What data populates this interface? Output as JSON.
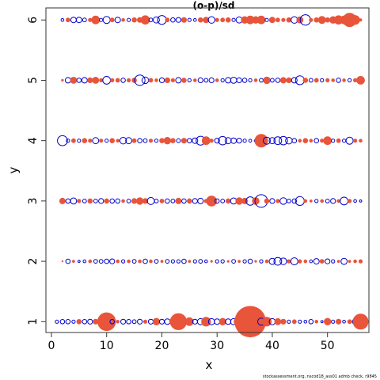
{
  "chart_data": {
    "type": "scatter",
    "title": "(o-p)/sd",
    "xlabel": "x",
    "ylabel": "y",
    "xlim": [
      -1,
      57.5
    ],
    "ylim": [
      0.82,
      6.2
    ],
    "xticks": [
      0,
      10,
      20,
      30,
      40,
      50
    ],
    "yticks": [
      1,
      2,
      3,
      4,
      5,
      6
    ],
    "grid": false,
    "legend": "none",
    "encoding": "bubble size = |residual|, filled red = positive, open blue = negative",
    "colors": {
      "positive": "#E8553A",
      "negative": "#0000CC",
      "frame": "#333333"
    },
    "points": [
      [
        1,
        1,
        -0.6
      ],
      [
        2,
        1,
        -0.8
      ],
      [
        3,
        1,
        -0.8
      ],
      [
        4,
        1,
        -0.6
      ],
      [
        5,
        1,
        0.8
      ],
      [
        6,
        1,
        -0.8
      ],
      [
        7,
        1,
        -0.9
      ],
      [
        8,
        1,
        0.9
      ],
      [
        9,
        1,
        -0.8
      ],
      [
        10,
        1,
        3.2
      ],
      [
        11,
        1,
        -0.8
      ],
      [
        12,
        1,
        0.5
      ],
      [
        13,
        1,
        -0.9
      ],
      [
        14,
        1,
        -0.8
      ],
      [
        15,
        1,
        -0.7
      ],
      [
        16,
        1,
        -0.9
      ],
      [
        17,
        1,
        0.6
      ],
      [
        18,
        1,
        -0.9
      ],
      [
        19,
        1,
        1.2
      ],
      [
        20,
        1,
        -0.9
      ],
      [
        21,
        1,
        -1.0
      ],
      [
        22,
        1,
        1.2
      ],
      [
        23,
        1,
        2.9
      ],
      [
        24,
        1,
        0.9
      ],
      [
        25,
        1,
        1.4
      ],
      [
        26,
        1,
        -0.9
      ],
      [
        27,
        1,
        -1.1
      ],
      [
        28,
        1,
        1.6
      ],
      [
        29,
        1,
        -1.1
      ],
      [
        30,
        1,
        -1.0
      ],
      [
        31,
        1,
        1.2
      ],
      [
        32,
        1,
        -1.0
      ],
      [
        33,
        1,
        -1.1
      ],
      [
        34,
        1,
        1.8
      ],
      [
        35,
        1,
        0.9
      ],
      [
        36,
        1,
        5.5
      ],
      [
        37,
        1,
        1.2
      ],
      [
        38,
        1,
        -1.3
      ],
      [
        39,
        1,
        1.6
      ],
      [
        40,
        1,
        -1.1
      ],
      [
        41,
        1,
        1.1
      ],
      [
        42,
        1,
        0.9
      ],
      [
        43,
        1,
        -0.6
      ],
      [
        44,
        1,
        0.7
      ],
      [
        45,
        1,
        -0.6
      ],
      [
        46,
        1,
        -0.5
      ],
      [
        47,
        1,
        -0.8
      ],
      [
        48,
        1,
        0.5
      ],
      [
        49,
        1,
        -0.4
      ],
      [
        50,
        1,
        1.2
      ],
      [
        51,
        1,
        -0.6
      ],
      [
        52,
        1,
        0.9
      ],
      [
        53,
        1,
        -0.5
      ],
      [
        54,
        1,
        0.7
      ],
      [
        55,
        1,
        -1.0
      ],
      [
        56,
        1,
        2.7
      ],
      [
        2,
        2,
        0.2
      ],
      [
        3,
        2,
        -0.8
      ],
      [
        4,
        2,
        0.4
      ],
      [
        5,
        2,
        -0.4
      ],
      [
        6,
        2,
        -0.5
      ],
      [
        7,
        2,
        0.5
      ],
      [
        8,
        2,
        -0.7
      ],
      [
        9,
        2,
        -0.7
      ],
      [
        10,
        2,
        -0.8
      ],
      [
        11,
        2,
        -0.9
      ],
      [
        12,
        2,
        0.5
      ],
      [
        13,
        2,
        -0.6
      ],
      [
        14,
        2,
        0.5
      ],
      [
        15,
        2,
        -0.7
      ],
      [
        16,
        2,
        0.5
      ],
      [
        17,
        2,
        -0.8
      ],
      [
        18,
        2,
        0.5
      ],
      [
        19,
        2,
        -0.7
      ],
      [
        20,
        2,
        0.4
      ],
      [
        21,
        2,
        -0.7
      ],
      [
        22,
        2,
        -0.6
      ],
      [
        23,
        2,
        -0.6
      ],
      [
        24,
        2,
        -0.8
      ],
      [
        25,
        2,
        0.4
      ],
      [
        26,
        2,
        -0.6
      ],
      [
        27,
        2,
        -0.7
      ],
      [
        28,
        2,
        -0.5
      ],
      [
        29,
        2,
        0.3
      ],
      [
        30,
        2,
        -0.6
      ],
      [
        31,
        2,
        -0.6
      ],
      [
        32,
        2,
        0.3
      ],
      [
        33,
        2,
        -0.7
      ],
      [
        34,
        2,
        0.4
      ],
      [
        35,
        2,
        -0.6
      ],
      [
        36,
        2,
        -0.8
      ],
      [
        37,
        2,
        0.3
      ],
      [
        38,
        2,
        -0.6
      ],
      [
        39,
        2,
        0.5
      ],
      [
        40,
        2,
        -1.1
      ],
      [
        41,
        2,
        -1.4
      ],
      [
        42,
        2,
        -1.2
      ],
      [
        43,
        2,
        0.6
      ],
      [
        44,
        2,
        -1.3
      ],
      [
        45,
        2,
        0.6
      ],
      [
        46,
        2,
        0.5
      ],
      [
        47,
        2,
        -0.5
      ],
      [
        48,
        2,
        -1.0
      ],
      [
        49,
        2,
        0.7
      ],
      [
        50,
        2,
        -0.9
      ],
      [
        51,
        2,
        -0.6
      ],
      [
        52,
        2,
        0.4
      ],
      [
        53,
        2,
        -1.1
      ],
      [
        54,
        2,
        0.4
      ],
      [
        55,
        2,
        0.5
      ],
      [
        56,
        2,
        0.6
      ],
      [
        2,
        3,
        1.0
      ],
      [
        3,
        3,
        -0.8
      ],
      [
        4,
        3,
        -1.1
      ],
      [
        5,
        3,
        0.6
      ],
      [
        6,
        3,
        -0.7
      ],
      [
        7,
        3,
        0.8
      ],
      [
        8,
        3,
        -0.7
      ],
      [
        9,
        3,
        -0.9
      ],
      [
        10,
        3,
        0.8
      ],
      [
        11,
        3,
        -0.8
      ],
      [
        12,
        3,
        -0.8
      ],
      [
        13,
        3,
        0.5
      ],
      [
        14,
        3,
        -0.7
      ],
      [
        15,
        3,
        0.9
      ],
      [
        16,
        3,
        1.2
      ],
      [
        17,
        3,
        0.9
      ],
      [
        18,
        3,
        -1.3
      ],
      [
        19,
        3,
        -0.7
      ],
      [
        20,
        3,
        0.7
      ],
      [
        21,
        3,
        -0.8
      ],
      [
        22,
        3,
        -0.7
      ],
      [
        23,
        3,
        1.0
      ],
      [
        24,
        3,
        -0.8
      ],
      [
        25,
        3,
        0.8
      ],
      [
        26,
        3,
        -0.9
      ],
      [
        27,
        3,
        -1.0
      ],
      [
        28,
        3,
        0.6
      ],
      [
        29,
        3,
        1.8
      ],
      [
        30,
        3,
        -0.8
      ],
      [
        31,
        3,
        -0.7
      ],
      [
        32,
        3,
        0.8
      ],
      [
        33,
        3,
        -1.1
      ],
      [
        34,
        3,
        1.2
      ],
      [
        35,
        3,
        1.0
      ],
      [
        36,
        3,
        -1.5
      ],
      [
        37,
        3,
        1.2
      ],
      [
        38,
        3,
        -2.3
      ],
      [
        39,
        3,
        0.8
      ],
      [
        40,
        3,
        -0.9
      ],
      [
        41,
        3,
        0.6
      ],
      [
        42,
        3,
        -1.2
      ],
      [
        43,
        3,
        -0.7
      ],
      [
        44,
        3,
        -0.8
      ],
      [
        45,
        3,
        -1.6
      ],
      [
        46,
        3,
        0.5
      ],
      [
        47,
        3,
        0.4
      ],
      [
        48,
        3,
        -0.6
      ],
      [
        49,
        3,
        0.5
      ],
      [
        50,
        3,
        -0.7
      ],
      [
        51,
        3,
        -0.9
      ],
      [
        52,
        3,
        0.5
      ],
      [
        53,
        3,
        -1.4
      ],
      [
        54,
        3,
        0.6
      ],
      [
        55,
        3,
        -0.5
      ],
      [
        56,
        3,
        -0.4
      ],
      [
        2,
        4,
        -1.8
      ],
      [
        3,
        4,
        -0.6
      ],
      [
        4,
        4,
        0.7
      ],
      [
        5,
        4,
        -0.6
      ],
      [
        6,
        4,
        0.8
      ],
      [
        7,
        4,
        0.6
      ],
      [
        8,
        4,
        -1.1
      ],
      [
        9,
        4,
        0.6
      ],
      [
        10,
        4,
        -0.6
      ],
      [
        11,
        4,
        0.8
      ],
      [
        12,
        4,
        0.5
      ],
      [
        13,
        4,
        -1.2
      ],
      [
        14,
        4,
        -1.1
      ],
      [
        15,
        4,
        0.7
      ],
      [
        16,
        4,
        -0.8
      ],
      [
        17,
        4,
        -0.7
      ],
      [
        18,
        4,
        0.6
      ],
      [
        19,
        4,
        -0.6
      ],
      [
        20,
        4,
        0.8
      ],
      [
        21,
        4,
        1.2
      ],
      [
        22,
        4,
        0.8
      ],
      [
        23,
        4,
        -0.7
      ],
      [
        24,
        4,
        0.9
      ],
      [
        25,
        4,
        -0.8
      ],
      [
        26,
        4,
        -1.0
      ],
      [
        27,
        4,
        -1.6
      ],
      [
        28,
        4,
        1.4
      ],
      [
        29,
        4,
        0.6
      ],
      [
        30,
        4,
        -0.9
      ],
      [
        31,
        4,
        -1.5
      ],
      [
        32,
        4,
        -1.1
      ],
      [
        33,
        4,
        -1.0
      ],
      [
        34,
        4,
        -0.9
      ],
      [
        35,
        4,
        -0.6
      ],
      [
        36,
        4,
        -0.5
      ],
      [
        37,
        4,
        -0.5
      ],
      [
        38,
        4,
        2.3
      ],
      [
        39,
        4,
        -1.3
      ],
      [
        40,
        4,
        -1.1
      ],
      [
        41,
        4,
        -1.4
      ],
      [
        42,
        4,
        -1.5
      ],
      [
        43,
        4,
        -1.2
      ],
      [
        44,
        4,
        -0.8
      ],
      [
        45,
        4,
        0.5
      ],
      [
        46,
        4,
        0.8
      ],
      [
        47,
        4,
        0.5
      ],
      [
        48,
        4,
        -0.8
      ],
      [
        49,
        4,
        0.6
      ],
      [
        50,
        4,
        1.4
      ],
      [
        51,
        4,
        -0.6
      ],
      [
        52,
        4,
        0.7
      ],
      [
        53,
        4,
        -0.6
      ],
      [
        54,
        4,
        -1.3
      ],
      [
        55,
        4,
        0.6
      ],
      [
        56,
        4,
        0.5
      ],
      [
        2,
        5,
        0.3
      ],
      [
        3,
        5,
        -1.0
      ],
      [
        4,
        5,
        1.1
      ],
      [
        5,
        5,
        -0.8
      ],
      [
        6,
        5,
        -1.0
      ],
      [
        7,
        5,
        0.9
      ],
      [
        8,
        5,
        1.1
      ],
      [
        9,
        5,
        0.6
      ],
      [
        10,
        5,
        -1.4
      ],
      [
        11,
        5,
        0.6
      ],
      [
        12,
        5,
        0.7
      ],
      [
        13,
        5,
        -0.8
      ],
      [
        14,
        5,
        0.6
      ],
      [
        15,
        5,
        0.8
      ],
      [
        16,
        5,
        -1.9
      ],
      [
        17,
        5,
        -1.2
      ],
      [
        18,
        5,
        0.7
      ],
      [
        19,
        5,
        0.5
      ],
      [
        20,
        5,
        -0.9
      ],
      [
        21,
        5,
        0.9
      ],
      [
        22,
        5,
        0.6
      ],
      [
        23,
        5,
        -1.0
      ],
      [
        24,
        5,
        0.8
      ],
      [
        25,
        5,
        -0.6
      ],
      [
        26,
        5,
        0.5
      ],
      [
        27,
        5,
        -0.9
      ],
      [
        28,
        5,
        -0.7
      ],
      [
        29,
        5,
        -0.9
      ],
      [
        30,
        5,
        0.5
      ],
      [
        31,
        5,
        -0.6
      ],
      [
        32,
        5,
        -1.0
      ],
      [
        33,
        5,
        -1.1
      ],
      [
        34,
        5,
        -0.9
      ],
      [
        35,
        5,
        -0.8
      ],
      [
        36,
        5,
        -0.6
      ],
      [
        37,
        5,
        0.5
      ],
      [
        38,
        5,
        -0.7
      ],
      [
        39,
        5,
        1.2
      ],
      [
        40,
        5,
        -0.7
      ],
      [
        41,
        5,
        -0.8
      ],
      [
        42,
        5,
        1.0
      ],
      [
        43,
        5,
        0.9
      ],
      [
        44,
        5,
        -1.0
      ],
      [
        45,
        5,
        -1.6
      ],
      [
        46,
        5,
        0.8
      ],
      [
        47,
        5,
        -0.7
      ],
      [
        48,
        5,
        0.7
      ],
      [
        49,
        5,
        -0.6
      ],
      [
        50,
        5,
        0.6
      ],
      [
        51,
        5,
        0.5
      ],
      [
        52,
        5,
        -0.8
      ],
      [
        53,
        5,
        0.5
      ],
      [
        54,
        5,
        -0.6
      ],
      [
        55,
        5,
        0.6
      ],
      [
        56,
        5,
        1.4
      ],
      [
        2,
        6,
        -0.5
      ],
      [
        3,
        6,
        0.7
      ],
      [
        4,
        6,
        -1.0
      ],
      [
        5,
        6,
        -1.0
      ],
      [
        6,
        6,
        -0.7
      ],
      [
        7,
        6,
        0.6
      ],
      [
        8,
        6,
        1.4
      ],
      [
        9,
        6,
        -0.6
      ],
      [
        10,
        6,
        -1.3
      ],
      [
        11,
        6,
        0.7
      ],
      [
        12,
        6,
        -1.0
      ],
      [
        13,
        6,
        0.5
      ],
      [
        14,
        6,
        -0.6
      ],
      [
        15,
        6,
        0.8
      ],
      [
        16,
        6,
        0.9
      ],
      [
        17,
        6,
        1.5
      ],
      [
        18,
        6,
        -0.7
      ],
      [
        19,
        6,
        -1.1
      ],
      [
        20,
        6,
        -1.6
      ],
      [
        21,
        6,
        0.7
      ],
      [
        22,
        6,
        -0.8
      ],
      [
        23,
        6,
        -0.9
      ],
      [
        24,
        6,
        0.9
      ],
      [
        25,
        6,
        -0.6
      ],
      [
        26,
        6,
        -0.5
      ],
      [
        27,
        6,
        0.8
      ],
      [
        28,
        6,
        1.0
      ],
      [
        29,
        6,
        -1.2
      ],
      [
        30,
        6,
        0.6
      ],
      [
        31,
        6,
        0.7
      ],
      [
        32,
        6,
        0.8
      ],
      [
        33,
        6,
        -0.6
      ],
      [
        34,
        6,
        -1.1
      ],
      [
        35,
        6,
        1.2
      ],
      [
        36,
        6,
        1.4
      ],
      [
        37,
        6,
        1.2
      ],
      [
        38,
        6,
        1.4
      ],
      [
        39,
        6,
        -0.6
      ],
      [
        40,
        6,
        1.0
      ],
      [
        41,
        6,
        0.7
      ],
      [
        42,
        6,
        0.6
      ],
      [
        43,
        6,
        0.8
      ],
      [
        44,
        6,
        -1.2
      ],
      [
        45,
        6,
        1.1
      ],
      [
        46,
        6,
        -1.9
      ],
      [
        47,
        6,
        0.6
      ],
      [
        48,
        6,
        0.8
      ],
      [
        49,
        6,
        1.3
      ],
      [
        50,
        6,
        0.8
      ],
      [
        51,
        6,
        1.2
      ],
      [
        52,
        6,
        1.5
      ],
      [
        53,
        6,
        1.4
      ],
      [
        54,
        6,
        2.4
      ],
      [
        55,
        6,
        1.6
      ],
      [
        56,
        6,
        0.4
      ]
    ]
  },
  "footer": "stockassessment.org, nscod18_ass01 admb check, r9845"
}
